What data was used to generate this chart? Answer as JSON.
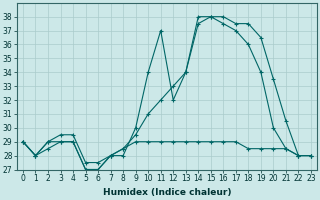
{
  "xlabel": "Humidex (Indice chaleur)",
  "bg_color": "#cce8e8",
  "grid_color": "#aacccc",
  "line_color": "#006666",
  "xlim": [
    -0.5,
    23.5
  ],
  "ylim": [
    27,
    39
  ],
  "yticks": [
    27,
    28,
    29,
    30,
    31,
    32,
    33,
    34,
    35,
    36,
    37,
    38
  ],
  "xticks": [
    0,
    1,
    2,
    3,
    4,
    5,
    6,
    7,
    8,
    9,
    10,
    11,
    12,
    13,
    14,
    15,
    16,
    17,
    18,
    19,
    20,
    21,
    22,
    23
  ],
  "line1_x": [
    0,
    1,
    2,
    3,
    4,
    5,
    6,
    7,
    8,
    9,
    10,
    11,
    12,
    13,
    14,
    15,
    16,
    17,
    18,
    19,
    20,
    21,
    22,
    23
  ],
  "line1_y": [
    29,
    28,
    29,
    29,
    29,
    27,
    27,
    28,
    28,
    30,
    34,
    37,
    32,
    34,
    38,
    38,
    38,
    37.5,
    37.5,
    36.5,
    33.5,
    30.5,
    28,
    28
  ],
  "line2_x": [
    0,
    1,
    2,
    3,
    4,
    5,
    6,
    7,
    8,
    9,
    10,
    11,
    12,
    13,
    14,
    15,
    16,
    17,
    18,
    19,
    20,
    21,
    22,
    23
  ],
  "line2_y": [
    29,
    28,
    28.5,
    29,
    29,
    27,
    27,
    28,
    28.5,
    29,
    29,
    29,
    29,
    29,
    29,
    29,
    29,
    29,
    28.5,
    28.5,
    28.5,
    28.5,
    28,
    28
  ],
  "line3_x": [
    0,
    1,
    2,
    3,
    4,
    5,
    6,
    7,
    8,
    9,
    10,
    11,
    12,
    13,
    14,
    15,
    16,
    17,
    18,
    19,
    20,
    21,
    22,
    23
  ],
  "line3_y": [
    29,
    28,
    29,
    29.5,
    29.5,
    27.5,
    27.5,
    28,
    28.5,
    29.5,
    31,
    32,
    33,
    34,
    37.5,
    38,
    37.5,
    37,
    36,
    34,
    30,
    28.5,
    28,
    28
  ],
  "xlabel_fontsize": 6.5,
  "tick_fontsize": 5.5,
  "line_lw": 0.8,
  "marker_size": 3
}
